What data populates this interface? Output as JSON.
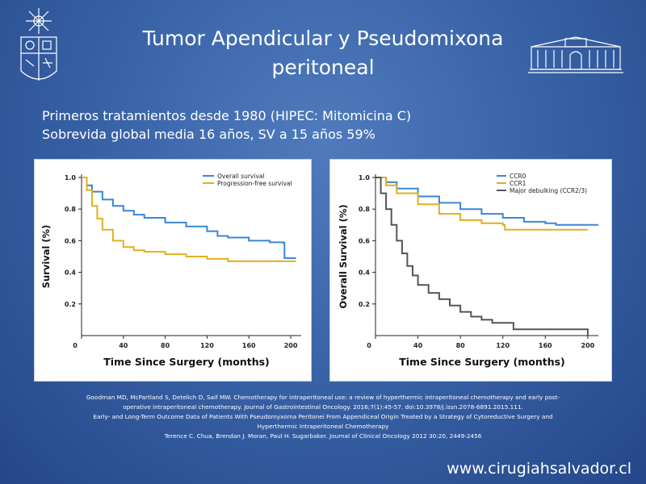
{
  "slide": {
    "title_line1": "Tumor Apendicular y Pseudomixona",
    "title_line2": "peritoneal",
    "subtitle_line1": "Primeros tratamientos desde 1980 (HIPEC: Mitomicina C)",
    "subtitle_line2": "Sobrevida global media 16 años, SV a 15 años 59%",
    "references": [
      "Goodman MD, McPartland S, Detelich D, Saif MW. Chemotherapy  for intraperitoneal  use: a review of hyperthermic  intraperitoneal chemotherapy  and early post-",
      "operative intraperitoneal chemotherapy.  Journal of Gastrointestinal Oncology. 2016;7(1):45-57.  doi:10.3978/j.issn.2078-6891.2015.111.",
      "Early- and Long-Term  Outcome Data of Patients With Pseudomyxoma  Peritonei From Appendiceal Origin Treated by a Strategy of Cytoreductive  Surgery and",
      "Hyperthermic Intraperitoneal  Chemotherapy",
      "Terence C. Chua, Brendan J. Moran,  Paul H. Sugarbaker. Journal of Clinical Oncology 2012 30:20, 2449-2456"
    ],
    "website": "www.cirugiahsalvador.cl"
  },
  "colors": {
    "blue": "#3a86d6",
    "gold": "#e0b020",
    "gray": "#555555"
  },
  "chart_data": [
    {
      "type": "line",
      "title": "",
      "xlabel": "Time Since Surgery (months)",
      "ylabel": "Survival (%)",
      "xlim": [
        0,
        210
      ],
      "ylim": [
        0,
        1.0
      ],
      "xticks": [
        "0",
        "40",
        "80",
        "120",
        "160",
        "200"
      ],
      "yticks": [
        "0.2",
        "0.4",
        "0.6",
        "0.8",
        "1.0"
      ],
      "legend_position": "top-right",
      "series": [
        {
          "name": "Overall survival",
          "color": "#3a86d6",
          "points": [
            [
              0,
              1.0
            ],
            [
              5,
              0.95
            ],
            [
              10,
              0.91
            ],
            [
              20,
              0.86
            ],
            [
              30,
              0.82
            ],
            [
              40,
              0.79
            ],
            [
              50,
              0.765
            ],
            [
              60,
              0.745
            ],
            [
              80,
              0.715
            ],
            [
              100,
              0.69
            ],
            [
              120,
              0.66
            ],
            [
              130,
              0.63
            ],
            [
              140,
              0.62
            ],
            [
              160,
              0.6
            ],
            [
              180,
              0.59
            ],
            [
              193,
              0.585
            ],
            [
              194,
              0.49
            ],
            [
              205,
              0.49
            ]
          ]
        },
        {
          "name": "Progression-free survival",
          "color": "#e0b020",
          "points": [
            [
              0,
              1.0
            ],
            [
              5,
              0.92
            ],
            [
              10,
              0.82
            ],
            [
              15,
              0.74
            ],
            [
              20,
              0.67
            ],
            [
              30,
              0.6
            ],
            [
              40,
              0.56
            ],
            [
              50,
              0.54
            ],
            [
              60,
              0.53
            ],
            [
              80,
              0.515
            ],
            [
              100,
              0.5
            ],
            [
              120,
              0.485
            ],
            [
              140,
              0.47
            ],
            [
              160,
              0.47
            ],
            [
              205,
              0.47
            ]
          ]
        }
      ]
    },
    {
      "type": "line",
      "title": "",
      "xlabel": "Time Since Surgery (months)",
      "ylabel": "Overall Survival (%)",
      "xlim": [
        0,
        210
      ],
      "ylim": [
        0,
        1.0
      ],
      "xticks": [
        "0",
        "40",
        "80",
        "120",
        "160",
        "200"
      ],
      "yticks": [
        "0.2",
        "0.4",
        "0.6",
        "0.8",
        "1.0"
      ],
      "legend_position": "top-right",
      "series": [
        {
          "name": "CCR0",
          "color": "#3a86d6",
          "points": [
            [
              0,
              1.0
            ],
            [
              10,
              0.97
            ],
            [
              20,
              0.93
            ],
            [
              40,
              0.88
            ],
            [
              60,
              0.84
            ],
            [
              80,
              0.8
            ],
            [
              100,
              0.77
            ],
            [
              120,
              0.745
            ],
            [
              140,
              0.72
            ],
            [
              160,
              0.71
            ],
            [
              170,
              0.7
            ],
            [
              210,
              0.7
            ]
          ]
        },
        {
          "name": "CCR1",
          "color": "#e0b020",
          "points": [
            [
              0,
              1.0
            ],
            [
              10,
              0.95
            ],
            [
              20,
              0.9
            ],
            [
              40,
              0.83
            ],
            [
              60,
              0.77
            ],
            [
              80,
              0.73
            ],
            [
              100,
              0.71
            ],
            [
              120,
              0.7
            ],
            [
              122,
              0.67
            ],
            [
              160,
              0.67
            ],
            [
              200,
              0.67
            ]
          ]
        },
        {
          "name": "Major debulking (CCR2/3)",
          "color": "#555555",
          "points": [
            [
              0,
              1.0
            ],
            [
              5,
              0.9
            ],
            [
              10,
              0.8
            ],
            [
              15,
              0.7
            ],
            [
              20,
              0.6
            ],
            [
              25,
              0.52
            ],
            [
              30,
              0.44
            ],
            [
              35,
              0.38
            ],
            [
              40,
              0.32
            ],
            [
              50,
              0.27
            ],
            [
              60,
              0.23
            ],
            [
              70,
              0.19
            ],
            [
              80,
              0.15
            ],
            [
              90,
              0.12
            ],
            [
              100,
              0.1
            ],
            [
              110,
              0.08
            ],
            [
              130,
              0.04
            ],
            [
              190,
              0.04
            ],
            [
              200,
              0.0
            ]
          ]
        }
      ]
    }
  ]
}
